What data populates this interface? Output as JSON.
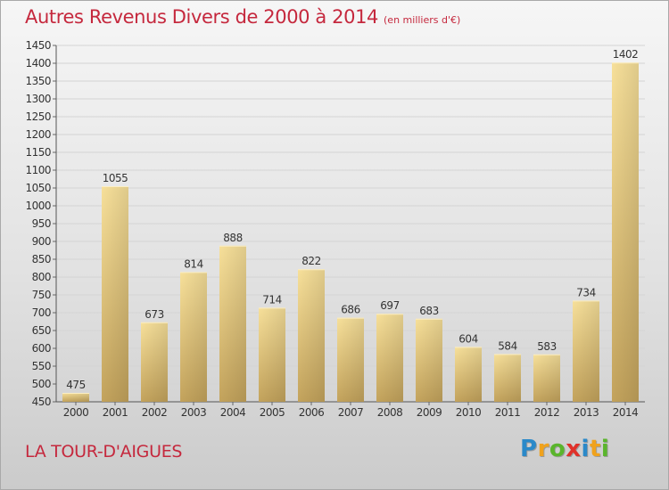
{
  "header": {
    "title": "Autres Revenus Divers de 2000 à 2014",
    "subtitle": "(en milliers d'€)"
  },
  "footer": {
    "city": "LA TOUR-D'AIGUES",
    "logo": "Proxiti"
  },
  "colors": {
    "title": "#c5283d",
    "bar_light": "#f5dc92",
    "bar_dark": "#c9aa63"
  },
  "chart_data": {
    "type": "bar",
    "title": "Autres Revenus Divers de 2000 à 2014",
    "subtitle": "(en milliers d'€)",
    "categories": [
      "2000",
      "2001",
      "2002",
      "2003",
      "2004",
      "2005",
      "2006",
      "2007",
      "2008",
      "2009",
      "2010",
      "2011",
      "2012",
      "2013",
      "2014"
    ],
    "values": [
      475,
      1055,
      673,
      814,
      888,
      714,
      822,
      686,
      697,
      683,
      604,
      584,
      583,
      734,
      1402
    ],
    "ylim": [
      450,
      1450
    ],
    "yticks": [
      450,
      500,
      550,
      600,
      650,
      700,
      750,
      800,
      850,
      900,
      950,
      1000,
      1050,
      1100,
      1150,
      1200,
      1250,
      1300,
      1350,
      1400,
      1450
    ],
    "grid": true,
    "legend": "none"
  }
}
